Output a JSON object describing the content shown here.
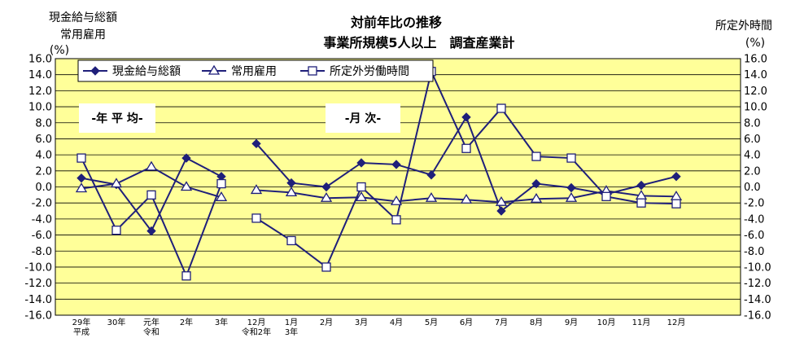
{
  "title_line1": "対前年比の推移",
  "title_line2": "事業所規模5人以上　調査産業計",
  "left_axis_label": [
    "現金給与総額",
    "常用雇用",
    "(%)"
  ],
  "right_axis_label": [
    "所定外時間",
    "(%)"
  ],
  "section_labels": [
    "-年 平 均-",
    "-月 次-"
  ],
  "colors": {
    "plot_bg": "#FFFF99",
    "series": "#1F1F7A",
    "frame": "#000000"
  },
  "chart_data": {
    "type": "line",
    "ylim": [
      -16,
      16
    ],
    "ytick_step": 2,
    "grid": true,
    "legend_position": "top-left",
    "categories": [
      [
        "29年",
        "平成"
      ],
      [
        "30年"
      ],
      [
        "元年",
        "令和"
      ],
      [
        "2年"
      ],
      [
        "3年"
      ],
      [
        "12月",
        "令和2年"
      ],
      [
        "1月",
        "3年"
      ],
      [
        "2月"
      ],
      [
        "3月"
      ],
      [
        "4月"
      ],
      [
        "5月"
      ],
      [
        "6月"
      ],
      [
        "7月"
      ],
      [
        "8月"
      ],
      [
        "9月"
      ],
      [
        "10月"
      ],
      [
        "11月"
      ],
      [
        "12月"
      ]
    ],
    "segments": [
      [
        0,
        4
      ],
      [
        5,
        17
      ]
    ],
    "series": [
      {
        "name": "現金給与総額",
        "marker": "diamond",
        "values": [
          1.1,
          0.3,
          -5.5,
          3.6,
          1.3,
          5.4,
          0.5,
          0.0,
          3.0,
          2.8,
          1.5,
          8.7,
          -3.0,
          0.4,
          -0.1,
          -0.9,
          0.2,
          1.3
        ]
      },
      {
        "name": "常用雇用",
        "marker": "triangle",
        "values": [
          -0.2,
          0.4,
          2.5,
          0.0,
          -1.3,
          -0.4,
          -0.7,
          -1.4,
          -1.3,
          -1.8,
          -1.4,
          -1.6,
          -1.9,
          -1.5,
          -1.4,
          -0.5,
          -1.1,
          -1.2
        ]
      },
      {
        "name": "所定外労働時間",
        "marker": "square",
        "values": [
          3.6,
          -5.4,
          -1.0,
          -11.1,
          0.4,
          -3.9,
          -6.7,
          -10.0,
          0.0,
          -4.1,
          14.4,
          4.8,
          9.8,
          3.8,
          3.6,
          -1.2,
          -2.0,
          -2.1
        ]
      }
    ]
  }
}
